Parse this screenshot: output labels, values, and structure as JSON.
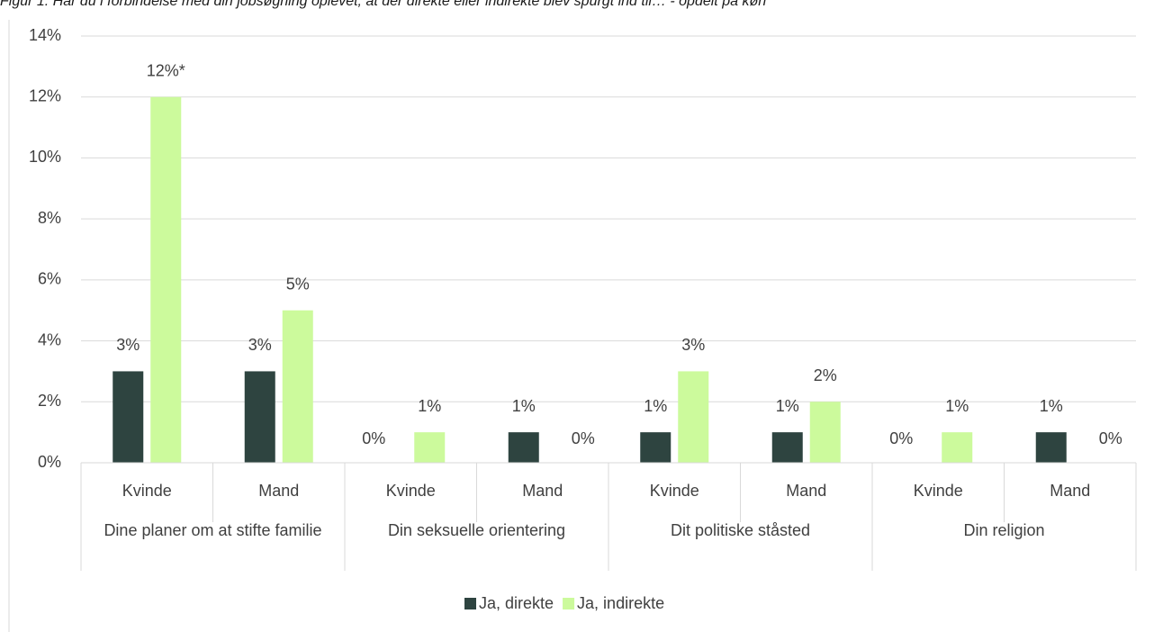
{
  "chart_data": {
    "type": "bar",
    "title": "Figur 1: Har du i forbindelse med din jobsøgning oplevet, at der direkte eller indirekte blev spurgt ind til… - opdelt på køn",
    "categories": [
      "Kvinde",
      "Mand",
      "Kvinde",
      "Mand",
      "Kvinde",
      "Mand",
      "Kvinde",
      "Mand"
    ],
    "groups": [
      "Dine planer om at stifte familie",
      "Din seksuelle orientering",
      "Dit politiske ståsted",
      "Din religion"
    ],
    "series": [
      {
        "name": "Ja, direkte",
        "color": "#2e4440",
        "values": [
          3,
          3,
          0,
          1,
          1,
          1,
          0,
          1
        ],
        "value_labels": [
          "3%",
          "3%",
          "0%",
          "1%",
          "1%",
          "1%",
          "0%",
          "1%"
        ]
      },
      {
        "name": "Ja, indirekte",
        "color": "#ccfa9c",
        "values": [
          12,
          5,
          1,
          0,
          3,
          2,
          1,
          0
        ],
        "value_labels": [
          "12%*",
          "5%",
          "1%",
          "0%",
          "3%",
          "2%",
          "1%",
          "0%"
        ]
      }
    ],
    "ylim": [
      0,
      14
    ],
    "yticks": [
      {
        "value": 0,
        "label": "0%"
      },
      {
        "value": 2,
        "label": "2%"
      },
      {
        "value": 4,
        "label": "4%"
      },
      {
        "value": 6,
        "label": "6%"
      },
      {
        "value": 8,
        "label": "8%"
      },
      {
        "value": 10,
        "label": "10%"
      },
      {
        "value": 12,
        "label": "12%"
      },
      {
        "value": 14,
        "label": "14%"
      }
    ],
    "grid": true,
    "legend": "bottom"
  }
}
